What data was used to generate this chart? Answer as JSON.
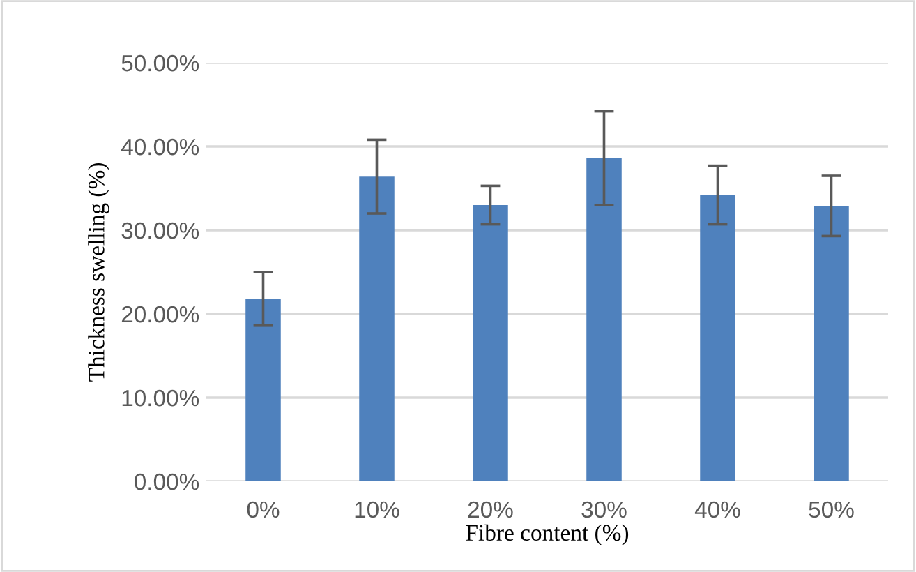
{
  "chart_data": {
    "type": "bar",
    "xlabel": "Fibre content (%)",
    "ylabel": "Thickness swelling (%)",
    "categories": [
      "0%",
      "10%",
      "20%",
      "30%",
      "40%",
      "50%"
    ],
    "values": [
      21.8,
      36.4,
      33.0,
      38.6,
      34.2,
      32.9
    ],
    "errors": [
      3.2,
      4.4,
      2.3,
      5.6,
      3.5,
      3.6
    ],
    "color": "#4f81bd",
    "ylim": [
      0,
      50
    ],
    "yticks": [
      {
        "value": 0,
        "label": "0.00%"
      },
      {
        "value": 10,
        "label": "10.00%"
      },
      {
        "value": 20,
        "label": "20.00%"
      },
      {
        "value": 30,
        "label": "30.00%"
      },
      {
        "value": 40,
        "label": "40.00%"
      },
      {
        "value": 50,
        "label": "50.00%"
      }
    ],
    "grid": "y",
    "legend": false
  }
}
